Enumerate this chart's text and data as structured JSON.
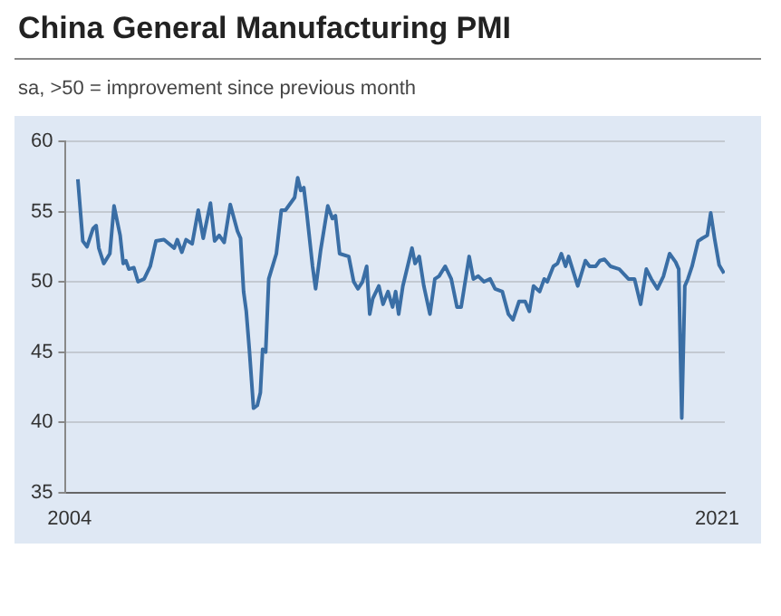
{
  "chart_data": {
    "type": "line",
    "title": "China General Manufacturing PMI",
    "subtitle": "sa, >50 = improvement since previous month",
    "x": [
      2004.22,
      2004.35,
      2004.46,
      2004.62,
      2004.7,
      2004.77,
      2004.9,
      2005.06,
      2005.17,
      2005.33,
      2005.41,
      2005.48,
      2005.56,
      2005.69,
      2005.8,
      2005.96,
      2006.12,
      2006.27,
      2006.48,
      2006.75,
      2006.83,
      2006.95,
      2007.06,
      2007.22,
      2007.38,
      2007.51,
      2007.7,
      2007.81,
      2007.93,
      2008.06,
      2008.22,
      2008.41,
      2008.49,
      2008.57,
      2008.64,
      2008.72,
      2008.83,
      2008.93,
      2009.01,
      2009.07,
      2009.15,
      2009.23,
      2009.43,
      2009.56,
      2009.67,
      2009.91,
      2009.99,
      2010.07,
      2010.15,
      2010.22,
      2010.38,
      2010.46,
      2010.59,
      2010.78,
      2010.9,
      2010.98,
      2011.09,
      2011.33,
      2011.46,
      2011.57,
      2011.69,
      2011.8,
      2011.88,
      2011.96,
      2012.12,
      2012.23,
      2012.36,
      2012.48,
      2012.56,
      2012.64,
      2012.75,
      2012.99,
      2013.07,
      2013.18,
      2013.3,
      2013.46,
      2013.59,
      2013.7,
      2013.86,
      2014.02,
      2014.17,
      2014.28,
      2014.49,
      2014.6,
      2014.73,
      2014.88,
      2015.04,
      2015.17,
      2015.36,
      2015.52,
      2015.64,
      2015.8,
      2015.96,
      2016.07,
      2016.18,
      2016.34,
      2016.46,
      2016.54,
      2016.7,
      2016.81,
      2016.91,
      2017.02,
      2017.1,
      2017.34,
      2017.54,
      2017.65,
      2017.81,
      2017.92,
      2018.04,
      2018.2,
      2018.43,
      2018.67,
      2018.83,
      2018.99,
      2019.14,
      2019.27,
      2019.43,
      2019.59,
      2019.75,
      2019.91,
      2019.99,
      2020.07,
      2020.15,
      2020.23,
      2020.34,
      2020.5,
      2020.61,
      2020.74,
      2020.83,
      2020.93,
      2021.05,
      2021.18
    ],
    "series": [
      {
        "color": "#3a6ea5",
        "values": [
          57.3,
          52.9,
          52.5,
          53.8,
          54.0,
          52.4,
          51.3,
          52.0,
          55.4,
          53.3,
          51.3,
          51.5,
          50.9,
          51.0,
          50.0,
          50.2,
          51.1,
          52.9,
          53.0,
          52.4,
          53.0,
          52.1,
          53.0,
          52.7,
          55.1,
          53.1,
          55.6,
          52.9,
          53.3,
          52.8,
          55.5,
          53.6,
          53.1,
          49.3,
          47.9,
          45.2,
          41.0,
          41.2,
          42.1,
          45.2,
          45.0,
          50.2,
          52.0,
          55.1,
          55.1,
          56.0,
          57.4,
          56.5,
          56.7,
          55.1,
          51.1,
          49.5,
          52.2,
          55.4,
          54.5,
          54.7,
          52.0,
          51.8,
          50.0,
          49.5,
          50.0,
          51.1,
          47.7,
          48.8,
          49.7,
          48.4,
          49.3,
          48.2,
          49.3,
          47.7,
          49.7,
          52.4,
          51.3,
          51.8,
          49.7,
          47.7,
          50.2,
          50.4,
          51.1,
          50.2,
          48.2,
          48.2,
          51.8,
          50.2,
          50.4,
          50.0,
          50.2,
          49.5,
          49.3,
          47.7,
          47.3,
          48.6,
          48.6,
          47.9,
          49.7,
          49.3,
          50.2,
          50.0,
          51.1,
          51.3,
          52.0,
          51.1,
          51.8,
          49.7,
          51.5,
          51.1,
          51.1,
          51.5,
          51.6,
          51.1,
          50.9,
          50.2,
          50.2,
          48.4,
          50.9,
          50.2,
          49.5,
          50.4,
          52.0,
          51.4,
          50.9,
          40.3,
          49.7,
          50.2,
          51.1,
          52.9,
          53.1,
          53.3,
          54.9,
          53.1,
          51.2,
          50.6
        ]
      }
    ],
    "xlim": [
      2003.9,
      2021.2
    ],
    "xticks": [
      2004,
      2021
    ],
    "ylim": [
      35,
      60
    ],
    "yticks": [
      35,
      40,
      45,
      50,
      55,
      60
    ],
    "grid": "y",
    "legend": false,
    "marker": "none",
    "line_style": "solid"
  }
}
